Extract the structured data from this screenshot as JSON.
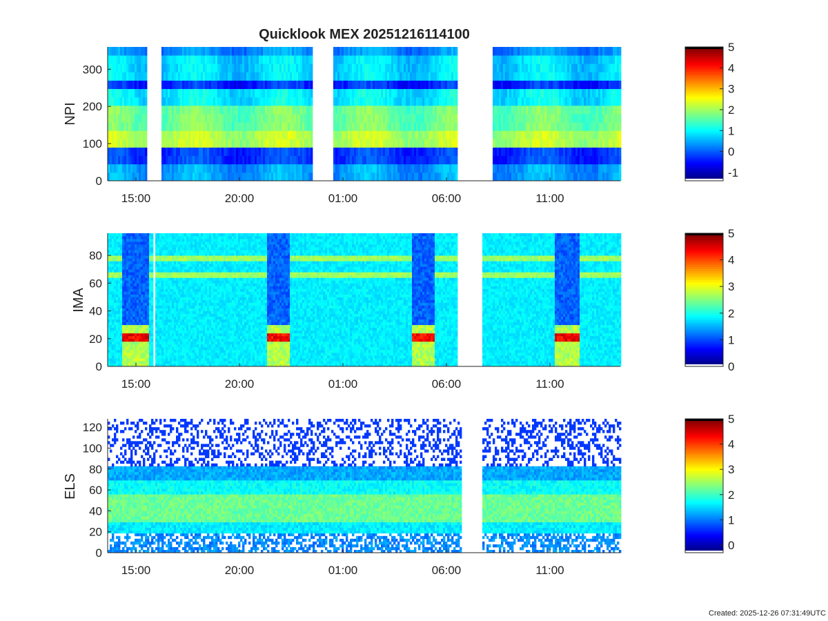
{
  "title": "Quicklook MEX 20251216114100",
  "footer": "Created: 2025-12-26 07:31:49UTC",
  "x_tick_labels": [
    "15:00",
    "20:00",
    "01:00",
    "06:00",
    "11:00"
  ],
  "colormap": [
    "#000080",
    "#0000ff",
    "#0080ff",
    "#00ffff",
    "#80ff80",
    "#ffff00",
    "#ff8000",
    "#ff0000",
    "#800000"
  ],
  "chart_data": [
    {
      "type": "heatmap",
      "ylabel": "NPI",
      "y_ticks": [
        0,
        100,
        200,
        300
      ],
      "ylim": [
        0,
        360
      ],
      "colorbar": {
        "ticks": [
          -1,
          0,
          1,
          2,
          3,
          4,
          5
        ],
        "range": [
          -1.4,
          5
        ]
      },
      "x_ticks": [
        "15:00",
        "20:00",
        "01:00",
        "06:00",
        "11:00"
      ],
      "data_gaps": [
        [
          "15:30",
          "16:10"
        ],
        [
          "23:30",
          "00:30"
        ],
        [
          "06:30",
          "08:10"
        ]
      ]
    },
    {
      "type": "heatmap",
      "ylabel": "IMA",
      "y_ticks": [
        0,
        20,
        40,
        60,
        80
      ],
      "ylim": [
        0,
        96
      ],
      "colorbar": {
        "ticks": [
          0,
          1,
          2,
          3,
          4,
          5
        ],
        "range": [
          0,
          5
        ]
      },
      "x_ticks": [
        "15:00",
        "20:00",
        "01:00",
        "06:00",
        "11:00"
      ],
      "data_gaps": [
        [
          "15:45",
          "15:55"
        ],
        [
          "06:30",
          "07:40"
        ]
      ]
    },
    {
      "type": "heatmap",
      "ylabel": "ELS",
      "y_ticks": [
        0,
        20,
        40,
        60,
        80,
        100,
        120
      ],
      "ylim": [
        0,
        128
      ],
      "colorbar": {
        "ticks": [
          0,
          1,
          2,
          3,
          4,
          5
        ],
        "range": [
          -0.3,
          5
        ]
      },
      "x_ticks": [
        "15:00",
        "20:00",
        "01:00",
        "06:00",
        "11:00"
      ],
      "data_gaps": [
        [
          "06:40",
          "07:40"
        ]
      ]
    }
  ]
}
